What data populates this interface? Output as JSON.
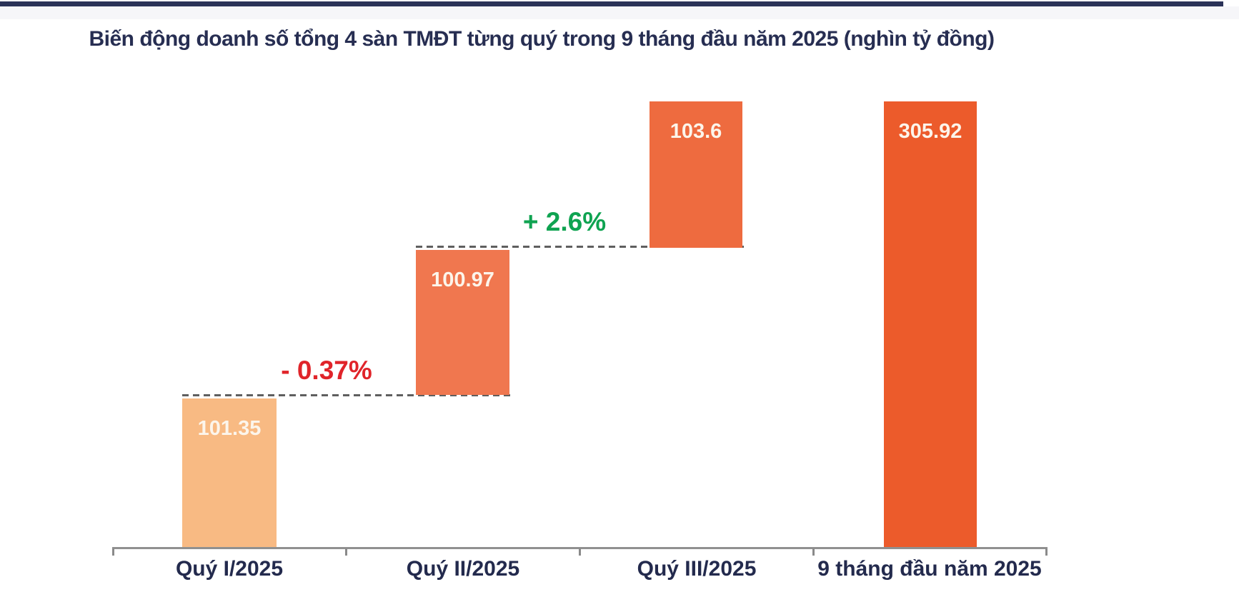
{
  "page": {
    "background": "#ffffff",
    "top_bar_color": "#2B3258"
  },
  "chart_data": {
    "type": "bar",
    "subtype": "waterfall",
    "title": "Biến động doanh số tổng 4 sàn TMĐT từng quý trong 9 tháng đầu năm 2025 (nghìn tỷ đồng)",
    "title_color": "#272E52",
    "unit": "nghìn tỷ đồng",
    "categories": [
      "Quý I/2025",
      "Quý II/2025",
      "Quý III/2025",
      "9 tháng đầu năm 2025"
    ],
    "values": [
      101.35,
      100.97,
      103.6,
      305.92
    ],
    "series": [
      {
        "name": "Quý I/2025",
        "value": 101.35,
        "role": "segment",
        "color": "#F8BA83"
      },
      {
        "name": "Quý II/2025",
        "value": 100.97,
        "role": "segment",
        "color": "#F0774F"
      },
      {
        "name": "Quý III/2025",
        "value": 103.6,
        "role": "segment",
        "color": "#EE6B3F"
      },
      {
        "name": "9 tháng đầu năm 2025",
        "value": 305.92,
        "role": "total",
        "color": "#EC5B2B"
      }
    ],
    "annotations": [
      {
        "text": "- 0.37%",
        "color": "#E0242A"
      },
      {
        "text": "+ 2.6%",
        "color": "#0FA351"
      }
    ],
    "value_label_color": "#FCF5EB",
    "connector_style": "dashed",
    "connector_color": "#5F5F5F",
    "axis": {
      "color": "#909090",
      "tick_count": 5,
      "label_color": "#232A4D",
      "grid": false
    },
    "legend": "none"
  }
}
